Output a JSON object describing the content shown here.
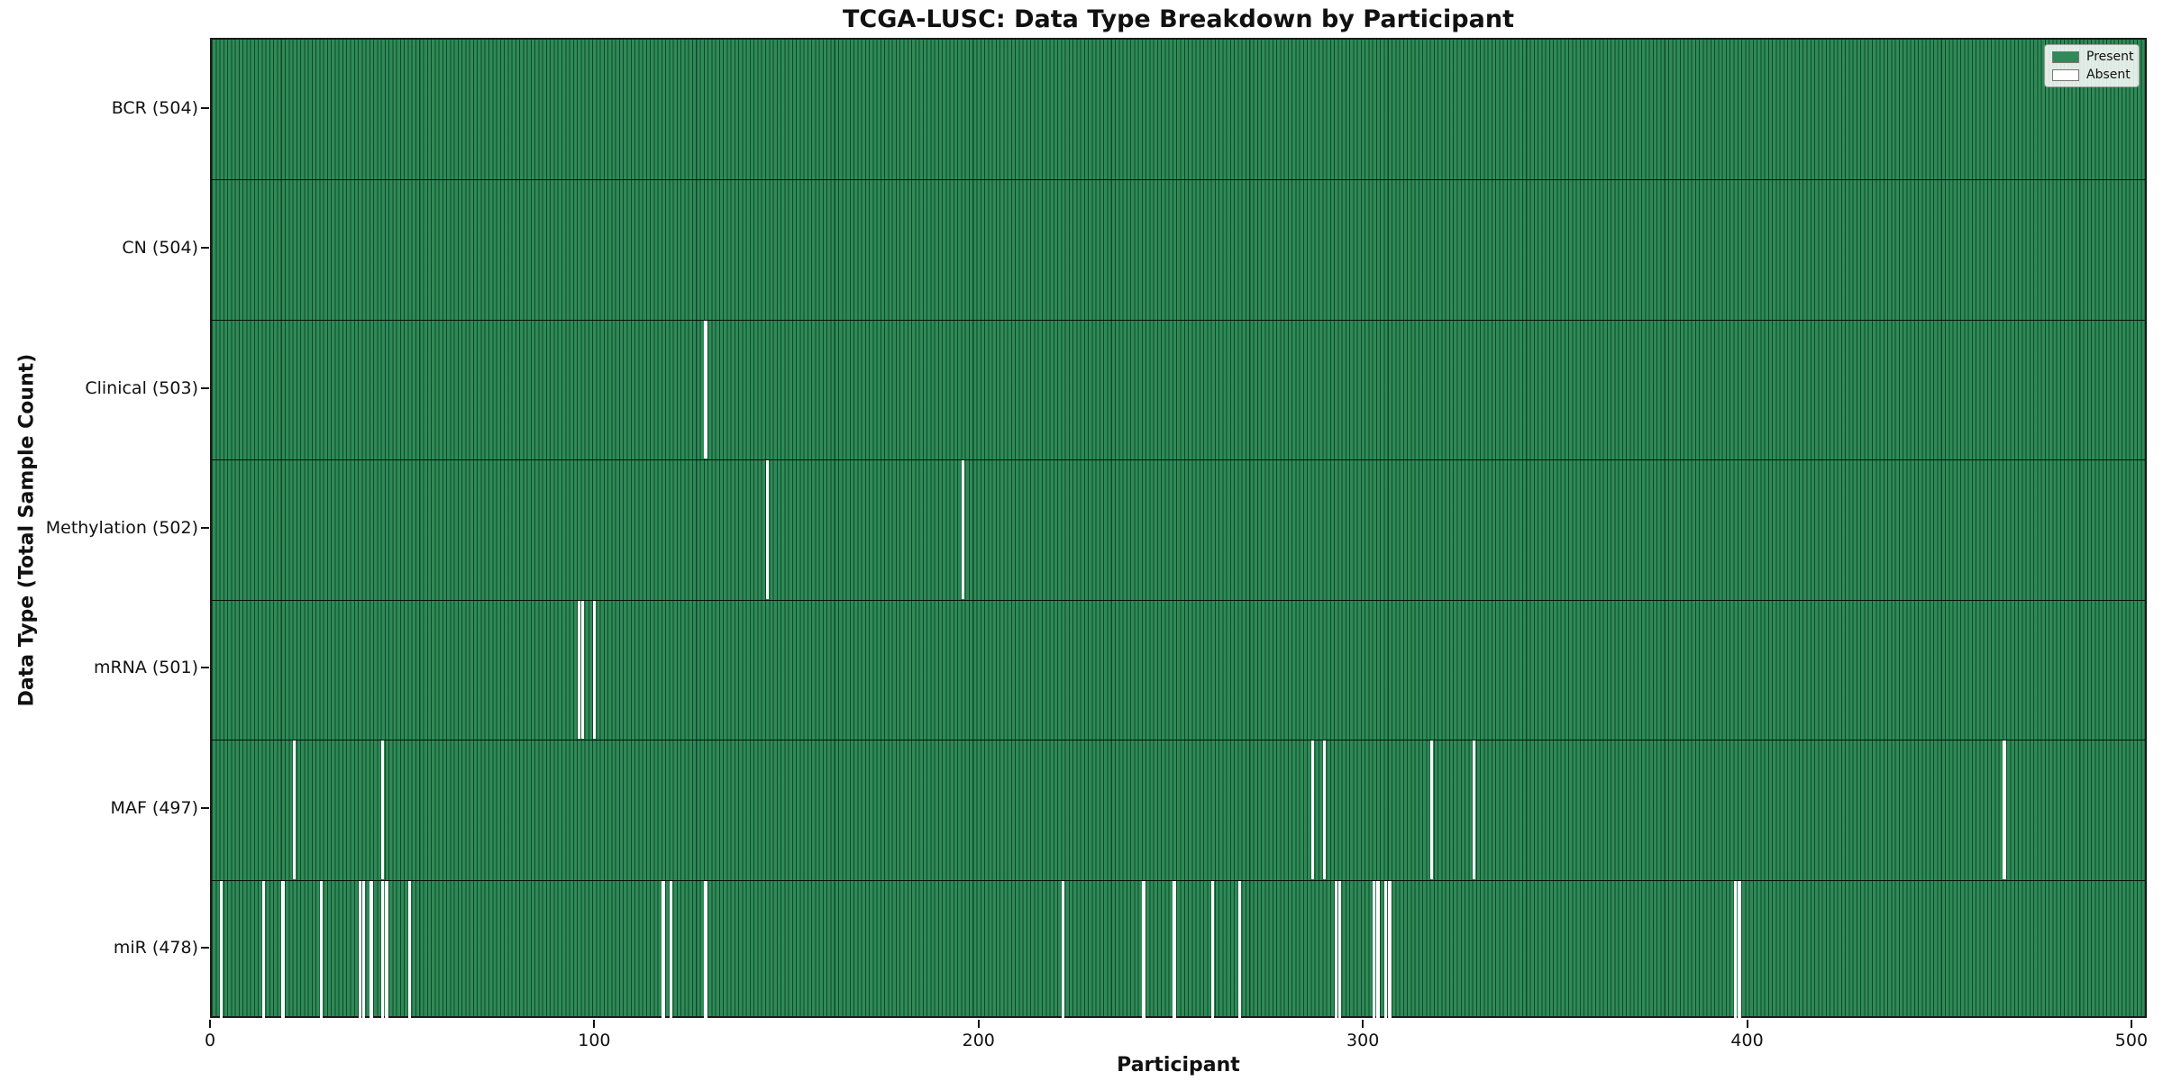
{
  "title": "TCGA-LUSC: Data Type Breakdown by Participant",
  "chart_data": {
    "type": "heatmap",
    "title": "TCGA-LUSC: Data Type Breakdown by Participant",
    "xlabel": "Participant",
    "ylabel": "Data Type (Total Sample Count)",
    "x_ticks": [
      0,
      100,
      200,
      300,
      400,
      500
    ],
    "xlim": [
      0,
      504
    ],
    "n_participants": 504,
    "grid": false,
    "legend": {
      "position": "upper right",
      "entries": [
        {
          "label": "Present",
          "color": "#2e8b57"
        },
        {
          "label": "Absent",
          "color": "#ffffff"
        }
      ]
    },
    "colors": {
      "present": "#2e8b57",
      "absent": "#ffffff",
      "bar_edge": "rgba(0,25,12,0.6)",
      "row_separator": "rgba(0,0,0,0.85)"
    },
    "rows": [
      {
        "id": "bcr",
        "label": "BCR (504)",
        "data_type": "BCR",
        "total": 504,
        "absent_participants": []
      },
      {
        "id": "cn",
        "label": "CN (504)",
        "data_type": "CN",
        "total": 504,
        "absent_participants": []
      },
      {
        "id": "clinical",
        "label": "Clinical (503)",
        "data_type": "Clinical",
        "total": 503,
        "absent_participants": [
          128
        ]
      },
      {
        "id": "methylation",
        "label": "Methylation (502)",
        "data_type": "Methylation",
        "total": 502,
        "absent_participants": [
          144,
          195
        ]
      },
      {
        "id": "mrna",
        "label": "mRNA (501)",
        "data_type": "mRNA",
        "total": 501,
        "absent_participants": [
          95,
          96,
          99
        ]
      },
      {
        "id": "maf",
        "label": "MAF (497)",
        "data_type": "MAF",
        "total": 497,
        "absent_participants": [
          21,
          44,
          286,
          289,
          317,
          328,
          466
        ]
      },
      {
        "id": "mir",
        "label": "miR (478)",
        "data_type": "miR",
        "total": 478,
        "absent_participants": [
          2,
          13,
          18,
          28,
          38,
          39,
          41,
          44,
          45,
          51,
          117,
          119,
          128,
          221,
          242,
          250,
          260,
          267,
          292,
          293,
          302,
          303,
          305,
          306,
          396,
          397
        ]
      }
    ]
  }
}
